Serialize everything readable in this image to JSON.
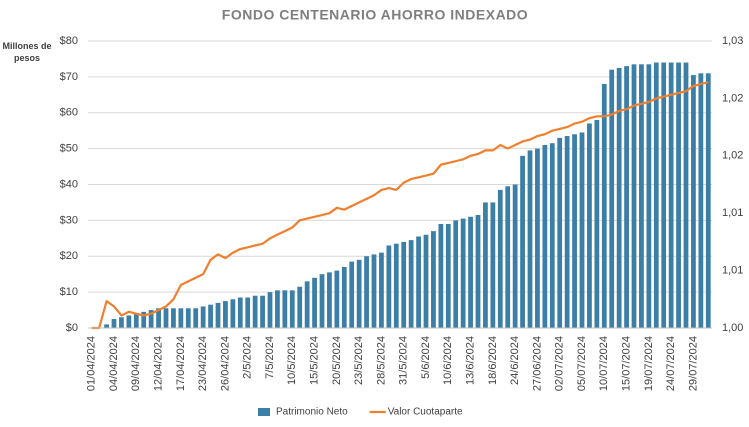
{
  "chart_data": {
    "type": "bar_line",
    "title": "FONDO CENTENARIO AHORRO INDEXADO",
    "y_label": "Millones de pesos",
    "categories": [
      "01/04/2024",
      null,
      null,
      "04/04/2024",
      null,
      null,
      "09/04/2024",
      null,
      null,
      "12/04/2024",
      null,
      null,
      "17/04/2024",
      null,
      null,
      "23/04/2024",
      null,
      null,
      "26/04/2024",
      null,
      null,
      "2/5/2024",
      null,
      null,
      "7/5/2024",
      null,
      null,
      "10/5/2024",
      null,
      null,
      "15/5/2024",
      null,
      null,
      "20/5/2024",
      null,
      null,
      "23/5/2024",
      null,
      null,
      "28/5/2024",
      null,
      null,
      "31/5/2024",
      null,
      null,
      "5/6/2024",
      null,
      null,
      "10/6/2024",
      null,
      null,
      "13/6/2024",
      null,
      null,
      "18/6/2024",
      null,
      null,
      "24/6/2024",
      null,
      null,
      "27/06/2024",
      null,
      null,
      "02/07/2024",
      null,
      null,
      "05/07/2024",
      null,
      null,
      "10/07/2024",
      null,
      null,
      "15/07/2024",
      null,
      null,
      "19/07/2024",
      null,
      null,
      "24/07/2024",
      null,
      null,
      "29/07/2024",
      null,
      null
    ],
    "series": [
      {
        "name": "Patrimonio Neto",
        "type": "bar",
        "color": "#3b7ea6",
        "values": [
          0,
          0,
          1,
          2.5,
          3,
          3.5,
          4,
          4.5,
          5,
          5.5,
          5.5,
          5.5,
          5.5,
          5.5,
          5.5,
          6,
          6.5,
          7,
          7.5,
          8,
          8.5,
          8.5,
          9,
          9,
          10,
          10.5,
          10.5,
          10.5,
          11.5,
          13,
          14,
          15,
          15.5,
          16,
          17,
          18.5,
          19,
          20,
          20.5,
          21,
          23,
          23.5,
          24,
          24.5,
          25.5,
          26,
          27,
          29,
          29,
          30,
          30.5,
          31,
          31.5,
          35,
          35,
          38.5,
          39.5,
          40,
          48,
          49.5,
          50,
          51,
          51.5,
          53,
          53.5,
          54,
          54.5,
          57,
          58,
          68,
          72,
          72.5,
          73,
          73.5,
          73.5,
          73.5,
          74,
          74,
          74,
          74,
          74,
          70.5,
          71,
          71
        ]
      },
      {
        "name": "Valor Cuotaparte",
        "type": "line",
        "axis": "y2",
        "color": "#f07f2e",
        "values": [
          1.005,
          1.005,
          1.00734,
          1.00688,
          1.00609,
          1.00641,
          1.00625,
          1.00609,
          1.00625,
          1.00656,
          1.00688,
          1.0075,
          1.00875,
          1.00906,
          1.00938,
          1.00969,
          1.01094,
          1.01141,
          1.01109,
          1.01156,
          1.01188,
          1.01203,
          1.01219,
          1.01234,
          1.01281,
          1.01313,
          1.01344,
          1.01375,
          1.01438,
          1.01453,
          1.01469,
          1.01484,
          1.015,
          1.01547,
          1.01531,
          1.01563,
          1.01594,
          1.01625,
          1.01656,
          1.01703,
          1.01719,
          1.01703,
          1.01766,
          1.01797,
          1.01813,
          1.01828,
          1.01844,
          1.01922,
          1.01938,
          1.01953,
          1.01969,
          1.02,
          1.02016,
          1.02047,
          1.02047,
          1.02094,
          1.02063,
          1.02094,
          1.02125,
          1.02141,
          1.02172,
          1.02188,
          1.02219,
          1.02234,
          1.0225,
          1.02281,
          1.02297,
          1.02328,
          1.02344,
          1.02344,
          1.02359,
          1.02391,
          1.02406,
          1.02438,
          1.02453,
          1.02469,
          1.025,
          1.02516,
          1.02531,
          1.02547,
          1.02563,
          1.02609,
          1.02625,
          1.02641
        ]
      }
    ],
    "ylim": [
      0,
      80
    ],
    "yticks": [
      {
        "value": 0,
        "label": "$0"
      },
      {
        "value": 10,
        "label": "$10"
      },
      {
        "value": 20,
        "label": "$20"
      },
      {
        "value": 30,
        "label": "$30"
      },
      {
        "value": 40,
        "label": "$40"
      },
      {
        "value": 50,
        "label": "$50"
      },
      {
        "value": 60,
        "label": "$60"
      },
      {
        "value": 70,
        "label": "$70"
      },
      {
        "value": 80,
        "label": "$80"
      }
    ],
    "y2lim": [
      1.005,
      1.03
    ],
    "y2ticks": [
      {
        "value": 1.005,
        "label": "1,00"
      },
      {
        "value": 1.01,
        "label": "1,01"
      },
      {
        "value": 1.015,
        "label": "1,01"
      },
      {
        "value": 1.02,
        "label": "1,02"
      },
      {
        "value": 1.025,
        "label": "1,02"
      },
      {
        "value": 1.03,
        "label": "1,03"
      }
    ],
    "grid": true,
    "legend": "bottom"
  }
}
